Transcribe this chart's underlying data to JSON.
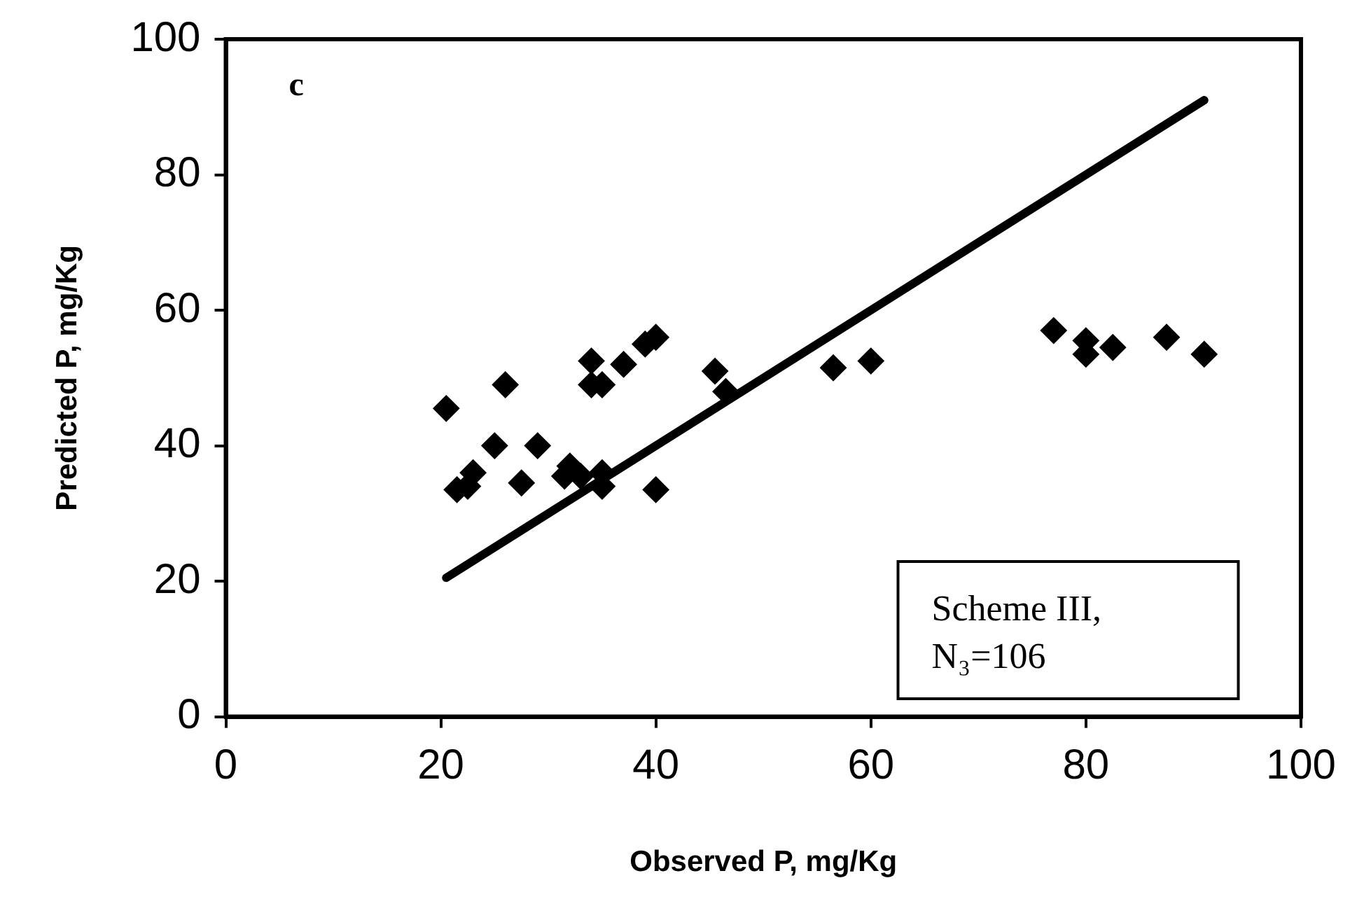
{
  "chart_data": {
    "type": "scatter",
    "xlabel": "Observed P, mg/Kg",
    "ylabel": "Predicted P, mg/Kg",
    "xlim": [
      0,
      100
    ],
    "xticks": [
      0,
      20,
      40,
      60,
      80,
      100
    ],
    "ylim": [
      0,
      100
    ],
    "yticks": [
      0,
      20,
      40,
      60,
      80,
      100
    ],
    "grid": false,
    "legend": false,
    "marker": "diamond",
    "annotations": [
      "c",
      "Scheme III,\nN₃=106"
    ],
    "series": [
      {
        "color": "#000000",
        "x": [
          20.5,
          21.5,
          22.5,
          23,
          25,
          26,
          27.5,
          29,
          31.5,
          32,
          33,
          34,
          34,
          35,
          35,
          35,
          37,
          39,
          40,
          40,
          45.5,
          46.5,
          56.5,
          60,
          77,
          80,
          80,
          82.5,
          87.5,
          91
        ],
        "values": [
          45.5,
          33.5,
          34,
          36,
          40,
          49,
          34.5,
          40,
          35.5,
          37,
          35.5,
          52.5,
          49,
          49,
          34,
          36,
          52,
          55,
          56,
          33.5,
          51,
          48,
          51.5,
          52.5,
          57,
          55.5,
          53.5,
          54.5,
          56,
          53.5
        ]
      },
      {
        "type": "line",
        "color": "#000000",
        "marker": "none",
        "line_style": "solid",
        "x": [
          20.5,
          91
        ],
        "values": [
          20.5,
          91
        ]
      }
    ]
  }
}
